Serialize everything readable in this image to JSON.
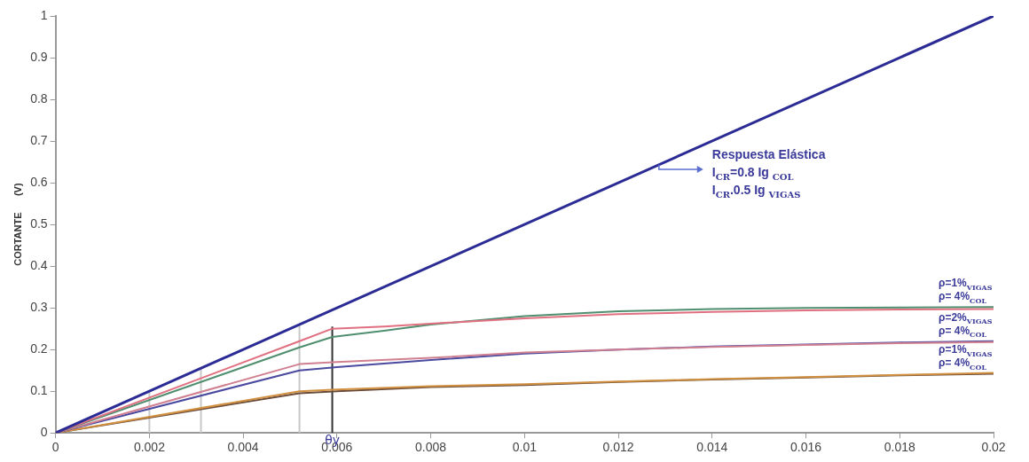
{
  "chart_data": {
    "type": "line",
    "ylabel": "CORTANTE      (V)",
    "xlim": [
      0,
      0.02
    ],
    "ylim": [
      0,
      1
    ],
    "xticks": [
      0,
      0.002,
      0.004,
      0.006,
      0.008,
      0.01,
      0.012,
      0.014,
      0.016,
      0.018,
      0.02
    ],
    "yticks": [
      0,
      0.1,
      0.2,
      0.3,
      0.4,
      0.5,
      0.6,
      0.7,
      0.8,
      0.9,
      1
    ],
    "grid": false,
    "legend": false,
    "marker": "none",
    "line_style": "solid",
    "series": [
      {
        "color": "#2b2b95",
        "x": [
          0,
          0.02
        ],
        "values": [
          0,
          1
        ]
      },
      {
        "color": "#e07080",
        "x": [
          0,
          0.0052,
          0.0059,
          0.007,
          0.008,
          0.01,
          0.012,
          0.014,
          0.016,
          0.018,
          0.02
        ],
        "values": [
          0,
          0.22,
          0.25,
          0.255,
          0.262,
          0.275,
          0.285,
          0.29,
          0.294,
          0.296,
          0.297
        ]
      },
      {
        "name": "ρ=1%$_{VIGAS}$\nρ= 4%$_{COL}$",
        "color": "#4f8f6f",
        "x": [
          0,
          0.0052,
          0.0059,
          0.007,
          0.008,
          0.01,
          0.012,
          0.014,
          0.016,
          0.018,
          0.02
        ],
        "values": [
          0,
          0.205,
          0.23,
          0.245,
          0.26,
          0.28,
          0.292,
          0.297,
          0.3,
          0.301,
          0.302
        ]
      },
      {
        "color": "#d08090",
        "x": [
          0,
          0.0052,
          0.006,
          0.008,
          0.01,
          0.012,
          0.014,
          0.016,
          0.018,
          0.02
        ],
        "values": [
          0,
          0.165,
          0.17,
          0.18,
          0.193,
          0.2,
          0.206,
          0.211,
          0.215,
          0.218
        ]
      },
      {
        "name": "ρ=2%$_{VIGAS}$\nρ= 4%$_{COL}$",
        "color": "#4a4aa0",
        "x": [
          0,
          0.0052,
          0.006,
          0.008,
          0.01,
          0.012,
          0.014,
          0.016,
          0.018,
          0.02
        ],
        "values": [
          0,
          0.15,
          0.158,
          0.175,
          0.19,
          0.2,
          0.207,
          0.212,
          0.217,
          0.22
        ]
      },
      {
        "color": "#d09040",
        "x": [
          0,
          0.0052,
          0.006,
          0.008,
          0.01,
          0.012,
          0.014,
          0.016,
          0.018,
          0.02
        ],
        "values": [
          0,
          0.1,
          0.104,
          0.112,
          0.117,
          0.123,
          0.129,
          0.134,
          0.139,
          0.144
        ]
      },
      {
        "name": "ρ=1%$_{VIGAS}$\nρ= 4%$_{COL}$",
        "color": "#6a4a3a",
        "x": [
          0,
          0.0052,
          0.006,
          0.008,
          0.01,
          0.012,
          0.014,
          0.016,
          0.018,
          0.02
        ],
        "values": [
          0,
          0.095,
          0.1,
          0.11,
          0.115,
          0.122,
          0.128,
          0.133,
          0.138,
          0.142
        ]
      },
      {
        "color": "#c8c8c8",
        "x": [
          0.002,
          0.002
        ],
        "values": [
          0,
          0.1
        ]
      },
      {
        "color": "#c8c8c8",
        "x": [
          0.0031,
          0.0031
        ],
        "values": [
          0,
          0.155
        ]
      },
      {
        "color": "#c8c8c8",
        "x": [
          0.0052,
          0.0052
        ],
        "values": [
          0,
          0.26
        ]
      },
      {
        "name": "θy",
        "color": "#333333",
        "x": [
          0.0059,
          0.0059
        ],
        "values": [
          0,
          0.255
        ]
      }
    ],
    "annotations": [
      "Respuesta Elástica\nI$_{CR}$=0.8 Ig $_{COL}$\nI$_{CR}$.0.5 Ig $_{VIGAS}$"
    ]
  }
}
